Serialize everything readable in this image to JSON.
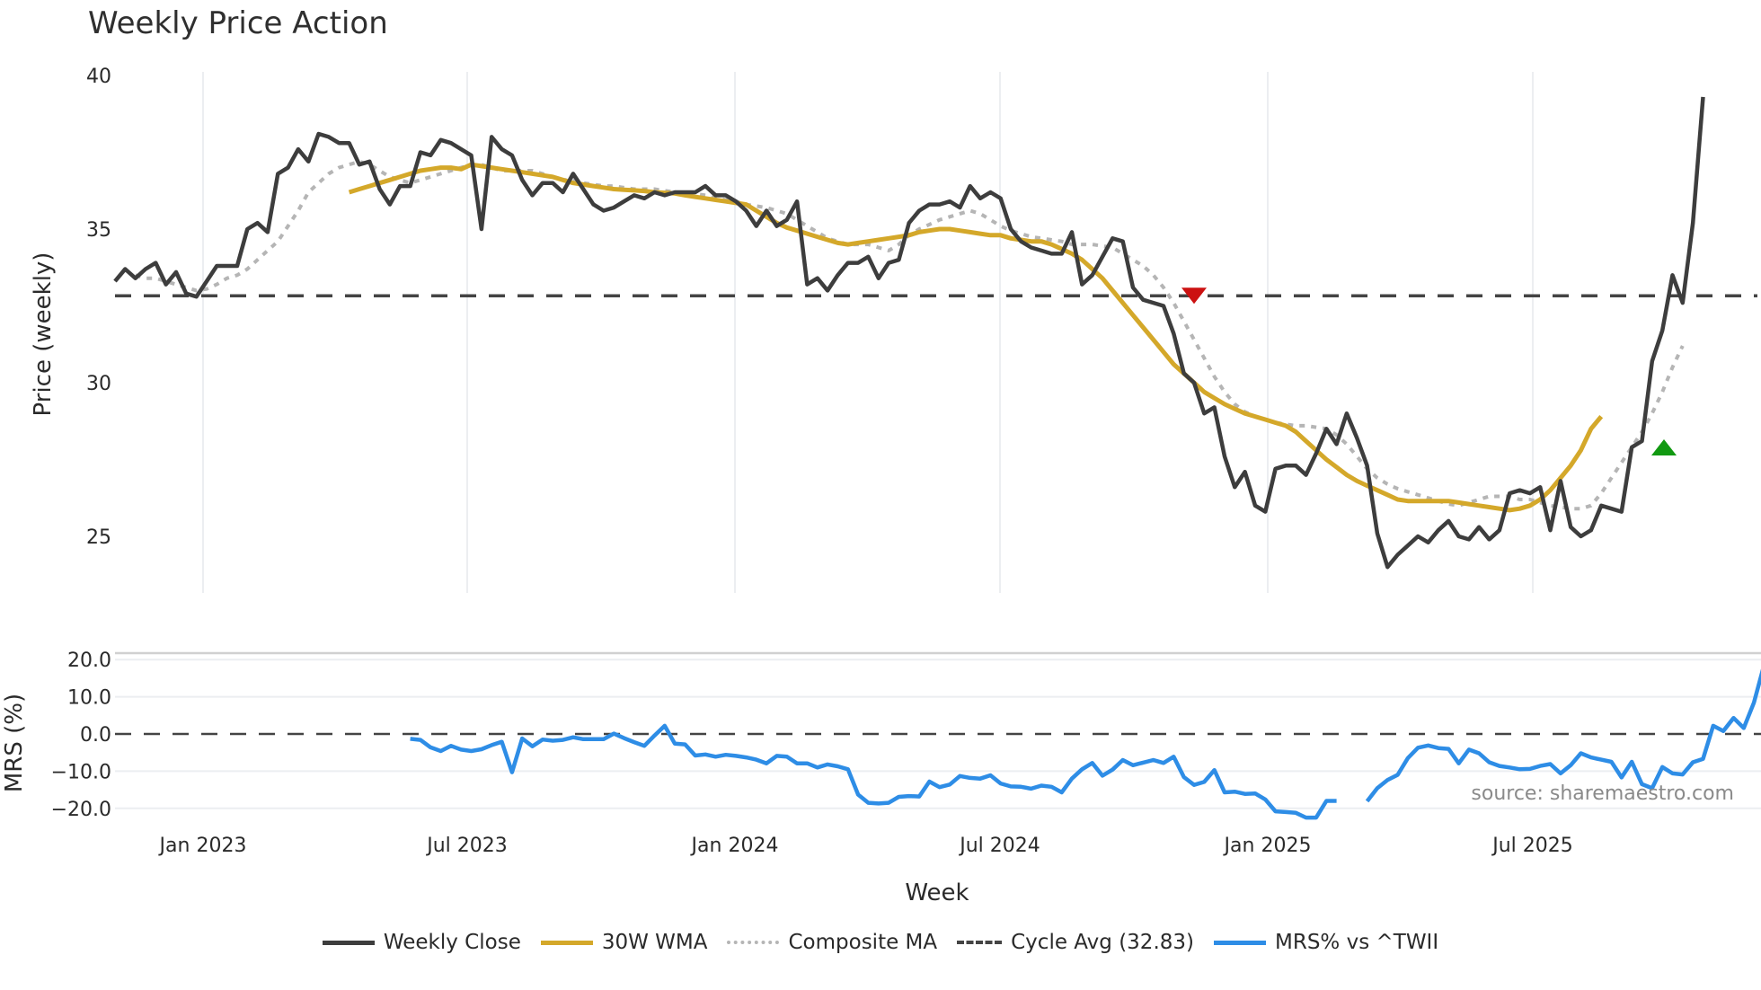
{
  "title": "Weekly Price Action",
  "source_text": "source: sharemaestro.com",
  "price_axis": {
    "label": "Price (weekly)",
    "ticks": [
      "40",
      "35",
      "30",
      "25"
    ]
  },
  "mrs_axis": {
    "label": "MRS (%)",
    "ticks": [
      "20.0",
      "10.0",
      "0.0",
      "−10.0",
      "−20.0"
    ]
  },
  "x_axis": {
    "label": "Week",
    "ticks": [
      "Jan 2023",
      "Jul 2023",
      "Jan 2024",
      "Jul 2024",
      "Jan 2025",
      "Jul 2025"
    ]
  },
  "legend": [
    {
      "label": "Weekly Close",
      "color": "#3d3d3d",
      "style": "solid"
    },
    {
      "label": "30W WMA",
      "color": "#d4a82a",
      "style": "solid"
    },
    {
      "label": "Composite MA",
      "color": "#b5b5b5",
      "style": "dotted"
    },
    {
      "label": "Cycle Avg (32.83)",
      "color": "#444444",
      "style": "dashed"
    },
    {
      "label": "MRS% vs ^TWII",
      "color": "#2e8de6",
      "style": "solid"
    }
  ],
  "chart_data": {
    "type": "line",
    "title": "Weekly Price Action",
    "xlabel": "Week",
    "panels": [
      {
        "name": "price",
        "ylabel": "Price (weekly)",
        "ylim": [
          23.2,
          40.5
        ],
        "yticks": [
          25,
          30,
          35,
          40
        ],
        "grid": "vertical",
        "reference_line": {
          "name": "Cycle Avg",
          "value": 32.83,
          "style": "dashed"
        },
        "series": [
          {
            "name": "Weekly Close",
            "start_week_index": 0,
            "values": [
              33.3,
              33.7,
              33.4,
              33.7,
              33.9,
              33.2,
              33.6,
              32.9,
              32.8,
              33.3,
              33.8,
              33.8,
              33.8,
              35.0,
              35.2,
              34.9,
              36.8,
              37.0,
              37.6,
              37.2,
              38.1,
              38.0,
              37.8,
              37.8,
              37.1,
              37.2,
              36.3,
              35.8,
              36.4,
              36.4,
              37.5,
              37.4,
              37.9,
              37.8,
              37.6,
              37.4,
              35.0,
              38.0,
              37.6,
              37.4,
              36.6,
              36.1,
              36.5,
              36.5,
              36.2,
              36.8,
              36.3,
              35.8,
              35.6,
              35.7,
              35.9,
              36.1,
              36.0,
              36.2,
              36.1,
              36.2,
              36.2,
              36.2,
              36.4,
              36.1,
              36.1,
              35.9,
              35.6,
              35.1,
              35.6,
              35.1,
              35.3,
              35.9,
              33.2,
              33.4,
              33.0,
              33.5,
              33.9,
              33.9,
              34.1,
              33.4,
              33.9,
              34.0,
              35.2,
              35.6,
              35.8,
              35.8,
              35.9,
              35.7,
              36.4,
              36.0,
              36.2,
              36.0,
              35.0,
              34.6,
              34.4,
              34.3,
              34.2,
              34.2,
              34.9,
              33.2,
              33.5,
              34.1,
              34.7,
              34.6,
              33.1,
              32.7,
              32.6,
              32.5,
              31.6,
              30.3,
              30.0,
              29.0,
              29.2,
              27.6,
              26.6,
              27.1,
              26.0,
              25.8,
              27.2,
              27.3,
              27.3,
              27.0,
              27.7,
              28.5,
              28.0,
              29.0,
              28.2,
              27.3,
              25.1,
              24.0,
              24.4,
              24.7,
              25.0,
              24.8,
              25.2,
              25.5,
              25.0,
              24.9,
              25.3,
              24.9,
              25.2,
              26.4,
              26.5,
              26.4,
              26.6,
              25.2,
              26.8,
              25.3,
              25.0,
              25.2,
              26.0,
              25.9,
              25.8,
              27.9,
              28.1,
              30.7,
              31.7,
              33.5,
              32.6,
              35.2,
              39.3
            ]
          },
          {
            "name": "30W WMA",
            "start_week_index": 23,
            "values": [
              36.2,
              36.3,
              36.4,
              36.5,
              36.6,
              36.7,
              36.8,
              36.9,
              36.95,
              37.0,
              37.0,
              36.95,
              37.1,
              37.05,
              37.0,
              36.95,
              36.9,
              36.85,
              36.8,
              36.75,
              36.7,
              36.6,
              36.5,
              36.45,
              36.4,
              36.35,
              36.3,
              36.28,
              36.26,
              36.24,
              36.2,
              36.18,
              36.16,
              36.1,
              36.05,
              36.0,
              35.95,
              35.9,
              35.85,
              35.8,
              35.6,
              35.4,
              35.2,
              35.05,
              34.95,
              34.85,
              34.75,
              34.65,
              34.55,
              34.5,
              34.55,
              34.6,
              34.65,
              34.7,
              34.75,
              34.8,
              34.9,
              34.95,
              35.0,
              35.0,
              34.95,
              34.9,
              34.85,
              34.8,
              34.8,
              34.7,
              34.65,
              34.6,
              34.6,
              34.5,
              34.35,
              34.2,
              34.0,
              33.7,
              33.4,
              33.0,
              32.6,
              32.2,
              31.8,
              31.4,
              31.0,
              30.6,
              30.3,
              30.0,
              29.7,
              29.5,
              29.3,
              29.15,
              29.0,
              28.9,
              28.8,
              28.7,
              28.6,
              28.4,
              28.1,
              27.8,
              27.5,
              27.25,
              27.0,
              26.8,
              26.65,
              26.5,
              26.35,
              26.2,
              26.15,
              26.15,
              26.15,
              26.15,
              26.15,
              26.1,
              26.05,
              26.0,
              25.95,
              25.9,
              25.85,
              25.9,
              26.0,
              26.2,
              26.5,
              26.9,
              27.3,
              27.8,
              28.5,
              28.9
            ]
          },
          {
            "name": "Composite MA",
            "start_week_index": 2,
            "values": [
              33.5,
              33.4,
              33.4,
              33.3,
              33.2,
              33.1,
              33.0,
              33.05,
              33.2,
              33.4,
              33.5,
              33.7,
              34.0,
              34.3,
              34.6,
              35.1,
              35.6,
              36.2,
              36.5,
              36.8,
              37.0,
              37.1,
              37.2,
              37.1,
              36.9,
              36.7,
              36.6,
              36.5,
              36.6,
              36.7,
              36.8,
              36.9,
              37.0,
              37.1,
              37.1,
              37.0,
              36.9,
              36.9,
              36.9,
              36.9,
              36.8,
              36.7,
              36.6,
              36.6,
              36.5,
              36.45,
              36.4,
              36.4,
              36.35,
              36.3,
              36.3,
              36.3,
              36.25,
              36.2,
              36.2,
              36.15,
              36.1,
              36.0,
              35.95,
              35.9,
              35.8,
              35.75,
              35.7,
              35.6,
              35.5,
              35.3,
              35.1,
              34.9,
              34.7,
              34.6,
              34.5,
              34.5,
              34.5,
              34.4,
              34.3,
              34.5,
              34.8,
              35.0,
              35.15,
              35.3,
              35.4,
              35.5,
              35.6,
              35.5,
              35.3,
              35.1,
              34.95,
              34.85,
              34.75,
              34.7,
              34.65,
              34.6,
              34.5,
              34.5,
              34.5,
              34.45,
              34.4,
              34.2,
              34.0,
              33.8,
              33.5,
              33.1,
              32.6,
              32.0,
              31.4,
              30.8,
              30.2,
              29.7,
              29.3,
              29.05,
              28.9,
              28.8,
              28.7,
              28.65,
              28.6,
              28.6,
              28.55,
              28.5,
              28.3,
              28.0,
              27.6,
              27.2,
              26.9,
              26.7,
              26.55,
              26.45,
              26.35,
              26.25,
              26.15,
              26.05,
              26.0,
              26.1,
              26.2,
              26.3,
              26.3,
              26.3,
              26.2,
              26.2,
              26.1,
              26.0,
              25.95,
              25.9,
              25.9,
              26.0,
              26.4,
              26.9,
              27.4,
              27.9,
              28.4,
              29.0,
              29.7,
              30.5,
              31.2
            ]
          }
        ],
        "markers": [
          {
            "type": "sell",
            "shape": "triangle-down",
            "color": "#cc1111",
            "approx_date": "Nov 2024",
            "price": 32.9
          },
          {
            "type": "buy",
            "shape": "triangle-up",
            "color": "#119911",
            "approx_date": "Oct 2025",
            "price": 27.9
          }
        ]
      },
      {
        "name": "mrs",
        "ylabel": "MRS (%)",
        "ylim": [
          -22.5,
          21.0
        ],
        "yticks": [
          -20,
          -10,
          0,
          10,
          20
        ],
        "reference_line": {
          "value": 0,
          "style": "dashed"
        },
        "series": [
          {
            "name": "MRS% vs ^TWII",
            "start_week_index": 29,
            "values": [
              -1.3,
              -1.6,
              -3.6,
              -4.6,
              -3.2,
              -4.2,
              -4.6,
              -4.1,
              -3.0,
              -2.1,
              -10.3,
              -1.2,
              -3.3,
              -1.5,
              -1.8,
              -1.6,
              -0.9,
              -1.4,
              -1.4,
              -1.4,
              0.1,
              -1.1,
              -2.2,
              -3.2,
              -0.4,
              2.2,
              -2.6,
              -2.8,
              -5.8,
              -5.5,
              -6.1,
              -5.6,
              -5.9,
              -6.3,
              -6.9,
              -7.9,
              -5.9,
              -6.1,
              -7.9,
              -7.9,
              -9.0,
              -8.2,
              -8.7,
              -9.5,
              -16.3,
              -18.5,
              -18.7,
              -18.5,
              -16.9,
              -16.7,
              -16.8,
              -12.8,
              -14.3,
              -13.6,
              -11.3,
              -11.8,
              -12.0,
              -11.1,
              -13.3,
              -14.1,
              -14.2,
              -14.7,
              -13.9,
              -14.2,
              -15.7,
              -12.0,
              -9.5,
              -7.8,
              -11.2,
              -9.6,
              -7.0,
              -8.4,
              -7.7,
              -7.0,
              -7.8,
              -6.1,
              -11.6,
              -13.7,
              -12.9,
              -9.7,
              -15.7,
              -15.5,
              -16.1,
              -16.0,
              -17.6,
              -20.8,
              -21.0,
              -21.2,
              -22.5,
              -22.5,
              -18.0,
              -18.0,
              null,
              null,
              -18.1,
              -14.6,
              -12.4,
              -11.0,
              -6.5,
              -3.7,
              -3.1,
              -3.8,
              -4.0,
              -7.9,
              -4.2,
              -5.2,
              -7.6,
              -8.6,
              -9.0,
              -9.5,
              -9.4,
              -8.6,
              -8.1,
              -10.6,
              -8.4,
              -5.2,
              -6.3,
              -6.9,
              -7.5,
              -11.7,
              -7.5,
              -13.5,
              -14.6,
              -8.9,
              -10.6,
              -10.9,
              -7.6,
              -6.7,
              2.2,
              0.8,
              4.3,
              1.6,
              8.4,
              18.6
            ]
          }
        ]
      }
    ],
    "xticks": [
      "Jan 2023",
      "Jul 2023",
      "Jan 2024",
      "Jul 2024",
      "Jan 2025",
      "Jul 2025"
    ],
    "legend_position": "bottom"
  }
}
